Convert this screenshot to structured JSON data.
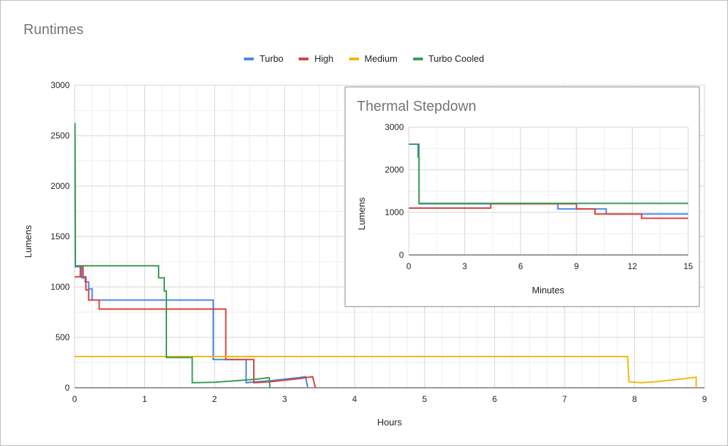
{
  "chart_data": [
    {
      "type": "line",
      "title": "Runtimes",
      "xlabel": "Hours",
      "ylabel": "Lumens",
      "xlim": [
        0,
        9
      ],
      "ylim": [
        0,
        3000
      ],
      "xticks": [
        0,
        1,
        2,
        3,
        4,
        5,
        6,
        7,
        8,
        9
      ],
      "yticks": [
        0,
        500,
        1000,
        1500,
        2000,
        2500,
        3000
      ],
      "grid": true,
      "legend_position": "top-center",
      "series": [
        {
          "name": "Turbo",
          "color": "#4a86e8",
          "points": [
            [
              0,
              2580
            ],
            [
              0.005,
              2580
            ],
            [
              0.01,
              1200
            ],
            [
              0.1,
              1200
            ],
            [
              0.1,
              1090
            ],
            [
              0.15,
              1090
            ],
            [
              0.15,
              1050
            ],
            [
              0.2,
              1050
            ],
            [
              0.2,
              980
            ],
            [
              0.25,
              980
            ],
            [
              0.25,
              870
            ],
            [
              1.98,
              870
            ],
            [
              1.98,
              280
            ],
            [
              2.45,
              280
            ],
            [
              2.45,
              50
            ],
            [
              2.6,
              60
            ],
            [
              2.8,
              70
            ],
            [
              3.0,
              85
            ],
            [
              3.2,
              100
            ],
            [
              3.3,
              110
            ],
            [
              3.33,
              0
            ]
          ]
        },
        {
          "name": "High",
          "color": "#d9423a",
          "points": [
            [
              0,
              1100
            ],
            [
              0.08,
              1100
            ],
            [
              0.08,
              1200
            ],
            [
              0.12,
              1200
            ],
            [
              0.12,
              1100
            ],
            [
              0.16,
              1100
            ],
            [
              0.16,
              970
            ],
            [
              0.2,
              970
            ],
            [
              0.2,
              870
            ],
            [
              0.35,
              870
            ],
            [
              0.35,
              780
            ],
            [
              2.16,
              780
            ],
            [
              2.16,
              280
            ],
            [
              2.56,
              280
            ],
            [
              2.56,
              50
            ],
            [
              2.8,
              60
            ],
            [
              3.0,
              75
            ],
            [
              3.2,
              90
            ],
            [
              3.4,
              110
            ],
            [
              3.44,
              0
            ]
          ]
        },
        {
          "name": "Medium",
          "color": "#f1b80d",
          "points": [
            [
              0,
              310
            ],
            [
              7.9,
              310
            ],
            [
              7.92,
              60
            ],
            [
              8.1,
              50
            ],
            [
              8.3,
              60
            ],
            [
              8.5,
              75
            ],
            [
              8.7,
              90
            ],
            [
              8.88,
              105
            ],
            [
              8.88,
              0
            ]
          ]
        },
        {
          "name": "Turbo Cooled",
          "color": "#3a9b53",
          "points": [
            [
              0,
              2620
            ],
            [
              0.005,
              2620
            ],
            [
              0.01,
              1210
            ],
            [
              1.2,
              1210
            ],
            [
              1.2,
              1090
            ],
            [
              1.28,
              1090
            ],
            [
              1.28,
              960
            ],
            [
              1.31,
              960
            ],
            [
              1.31,
              300
            ],
            [
              1.68,
              300
            ],
            [
              1.68,
              50
            ],
            [
              2.0,
              55
            ],
            [
              2.3,
              70
            ],
            [
              2.6,
              85
            ],
            [
              2.78,
              100
            ],
            [
              2.79,
              0
            ]
          ]
        }
      ]
    },
    {
      "type": "line",
      "title": "Thermal Stepdown",
      "xlabel": "Minutes",
      "ylabel": "Lumens",
      "xlim": [
        0,
        15
      ],
      "ylim": [
        0,
        3000
      ],
      "xticks": [
        0,
        3,
        6,
        9,
        12,
        15
      ],
      "yticks": [
        0,
        1000,
        2000,
        3000
      ],
      "grid": true,
      "series": [
        {
          "name": "Turbo",
          "color": "#4a86e8",
          "points": [
            [
              0,
              2600
            ],
            [
              0.55,
              2600
            ],
            [
              0.55,
              1200
            ],
            [
              8.0,
              1200
            ],
            [
              8.0,
              1080
            ],
            [
              9.0,
              1080
            ],
            [
              9.0,
              1080
            ],
            [
              10.6,
              1080
            ],
            [
              10.6,
              960
            ],
            [
              15,
              960
            ]
          ]
        },
        {
          "name": "High",
          "color": "#d9423a",
          "points": [
            [
              0,
              1100
            ],
            [
              4.4,
              1100
            ],
            [
              4.4,
              1200
            ],
            [
              9.0,
              1200
            ],
            [
              9.0,
              1080
            ],
            [
              10.0,
              1080
            ],
            [
              10.0,
              960
            ],
            [
              12.5,
              960
            ],
            [
              12.5,
              860
            ],
            [
              15,
              860
            ]
          ]
        },
        {
          "name": "Turbo Cooled",
          "color": "#3a9b53",
          "points": [
            [
              0,
              2600
            ],
            [
              0.5,
              2600
            ],
            [
              0.5,
              2300
            ],
            [
              0.55,
              2300
            ],
            [
              0.55,
              1210
            ],
            [
              15,
              1210
            ]
          ]
        }
      ]
    }
  ]
}
